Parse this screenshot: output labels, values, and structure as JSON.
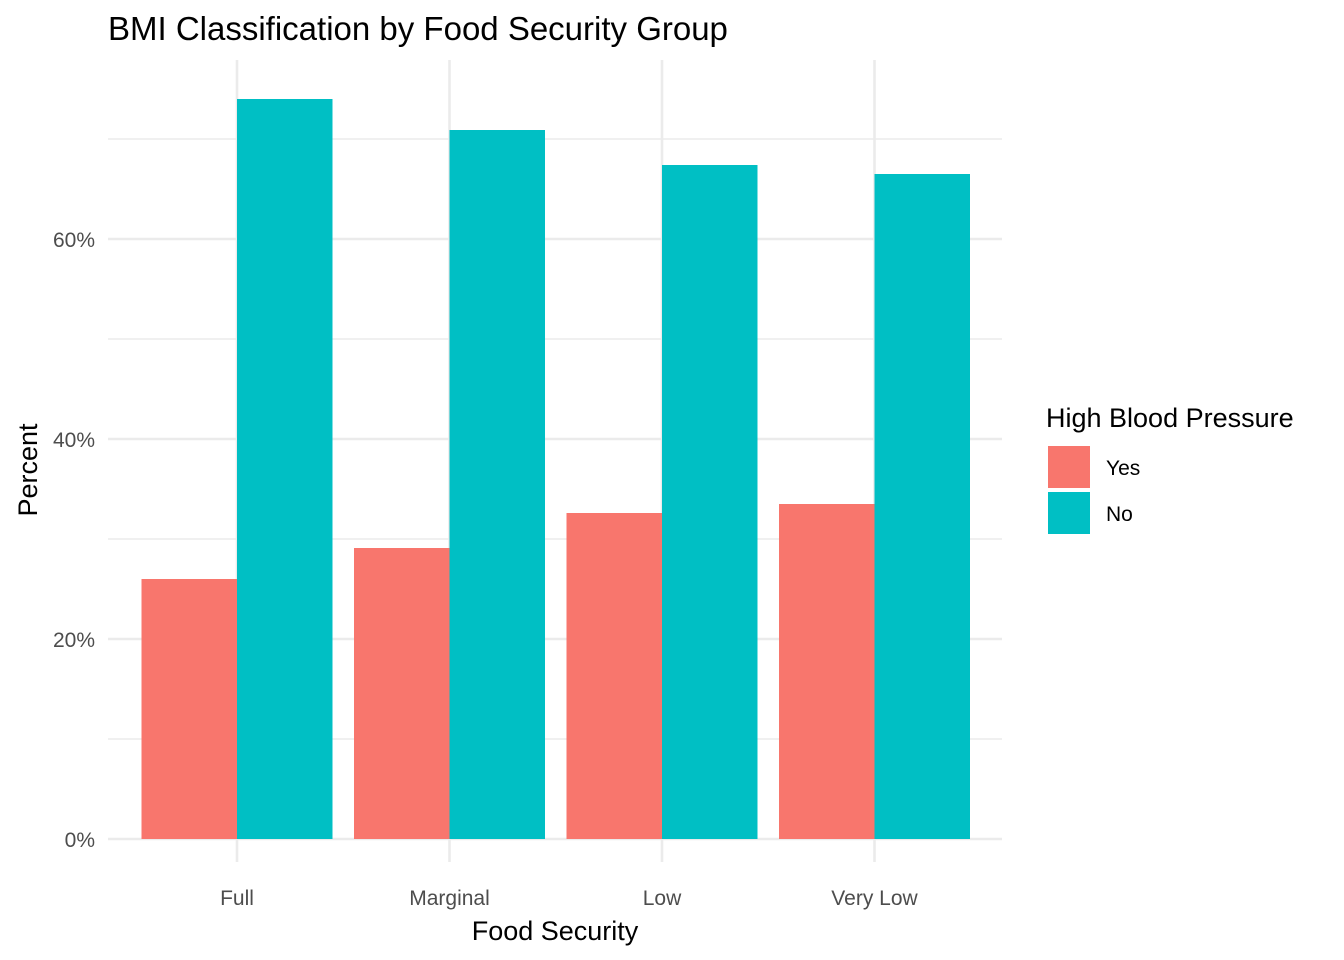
{
  "chart_data": {
    "type": "bar",
    "title": "BMI Classification by Food Security Group",
    "xlabel": "Food Security",
    "ylabel": "Percent",
    "categories": [
      "Full",
      "Marginal",
      "Low",
      "Very Low"
    ],
    "series": [
      {
        "name": "Yes",
        "values": [
          26.0,
          29.1,
          32.6,
          33.5
        ],
        "color": "#F8766D"
      },
      {
        "name": "No",
        "values": [
          74.0,
          70.9,
          67.4,
          66.5
        ],
        "color": "#00BFC4"
      }
    ],
    "ylim": [
      0,
      77.5
    ],
    "yticks": [
      0,
      20,
      40,
      60
    ],
    "ytick_labels": [
      "0%",
      "20%",
      "40%",
      "60%"
    ],
    "grid": true,
    "legend": {
      "title": "High Blood Pressure",
      "position": "right"
    }
  }
}
